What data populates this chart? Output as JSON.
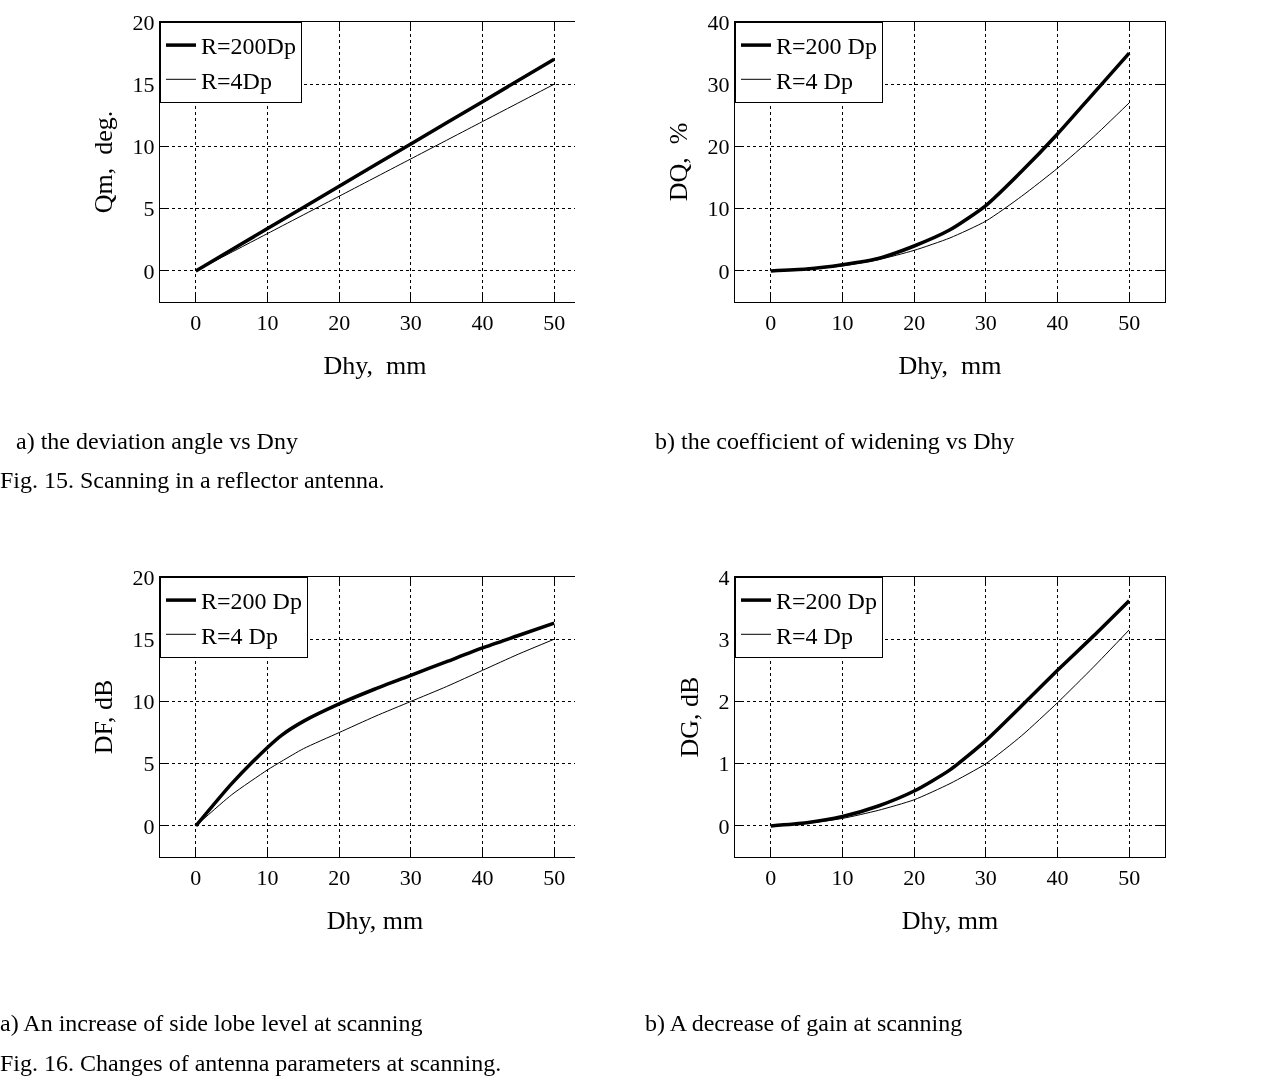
{
  "chart_data": [
    {
      "type": "line",
      "xlabel": "Dhy,  mm",
      "ylabel": "Qm,  deg.",
      "x": [
        0,
        10,
        20,
        30,
        40,
        50
      ],
      "xlim": [
        -5,
        55
      ],
      "xticks": [
        0,
        10,
        20,
        30,
        40,
        50
      ],
      "ylim": [
        -2.5,
        20
      ],
      "yticks": [
        0,
        5,
        10,
        15,
        20
      ],
      "grid": true,
      "legend": "top left",
      "line_style": "solid",
      "annotations": [
        "a) the deviation angle vs Dny",
        "Fig. 15. Scanning in a reflector antenna."
      ],
      "series": [
        {
          "name": "R=200Dp",
          "color": "#000000",
          "values": [
            0,
            3.4,
            6.8,
            10.2,
            13.6,
            17
          ]
        },
        {
          "name": "R=4Dp",
          "color": "#000000",
          "values": [
            0,
            3,
            6,
            9,
            12,
            15
          ]
        }
      ]
    },
    {
      "type": "line",
      "xlabel": "Dhy,  mm",
      "ylabel": "DQ,  %",
      "x": [
        0,
        5,
        10,
        15,
        20,
        25,
        30,
        35,
        40,
        45,
        50
      ],
      "xlim": [
        -5,
        55
      ],
      "xticks": [
        0,
        10,
        20,
        30,
        40,
        50
      ],
      "ylim": [
        -5,
        40
      ],
      "yticks": [
        0,
        10,
        20,
        30,
        40
      ],
      "grid": true,
      "legend": "top left",
      "line_style": "solid",
      "annotations": [
        "b) the coefficient of widening vs Dhy"
      ],
      "series": [
        {
          "name": "R=200 Dp",
          "color": "#000000",
          "values": [
            0,
            0.3,
            1,
            2,
            4,
            6.6,
            10.5,
            16,
            22,
            28.5,
            35
          ]
        },
        {
          "name": "R=4 Dp",
          "color": "#000000",
          "values": [
            0,
            0.25,
            0.8,
            1.8,
            3.3,
            5.3,
            8,
            12,
            16.5,
            21.5,
            27
          ]
        }
      ]
    },
    {
      "type": "line",
      "xlabel": "Dhy, mm",
      "ylabel": "DF, dB",
      "x": [
        0,
        5,
        10,
        12,
        15,
        20,
        25,
        30,
        35,
        40,
        45,
        50
      ],
      "xlim": [
        -5,
        55
      ],
      "xticks": [
        0,
        10,
        20,
        30,
        40,
        50
      ],
      "ylim": [
        -2.5,
        20
      ],
      "yticks": [
        0,
        5,
        10,
        15,
        20
      ],
      "grid": true,
      "legend": "top left",
      "line_style": "solid",
      "annotations": [
        "a) An increase of side lobe level at scanning",
        "Fig. 16. Changes of antenna parameters at scanning."
      ],
      "series": [
        {
          "name": "R=200 Dp",
          "color": "#000000",
          "values": [
            0,
            3.4,
            6.3,
            7.3,
            8.4,
            9.8,
            11,
            12.1,
            13.2,
            14.3,
            15.3,
            16.3
          ]
        },
        {
          "name": "R=4 Dp",
          "color": "#000000",
          "values": [
            0,
            2.5,
            4.5,
            5.2,
            6.2,
            7.5,
            8.8,
            10,
            11.2,
            12.5,
            13.8,
            15
          ]
        }
      ]
    },
    {
      "type": "line",
      "xlabel": "Dhy, mm",
      "ylabel": "DG, dB",
      "x": [
        0,
        5,
        10,
        15,
        20,
        25,
        30,
        35,
        40,
        45,
        50
      ],
      "xlim": [
        -5,
        55
      ],
      "xticks": [
        0,
        10,
        20,
        30,
        40,
        50
      ],
      "ylim": [
        -0.5,
        4
      ],
      "yticks": [
        0,
        1,
        2,
        3,
        4
      ],
      "grid": true,
      "legend": "top left",
      "line_style": "solid",
      "annotations": [
        "b) A decrease of  gain at scanning"
      ],
      "series": [
        {
          "name": "R=200 Dp",
          "color": "#000000",
          "values": [
            0,
            0.05,
            0.15,
            0.32,
            0.56,
            0.9,
            1.37,
            1.93,
            2.5,
            3.05,
            3.62
          ]
        },
        {
          "name": "R=4 Dp",
          "color": "#000000",
          "values": [
            0,
            0.04,
            0.12,
            0.25,
            0.42,
            0.68,
            1.0,
            1.45,
            1.98,
            2.55,
            3.15
          ]
        }
      ]
    }
  ]
}
